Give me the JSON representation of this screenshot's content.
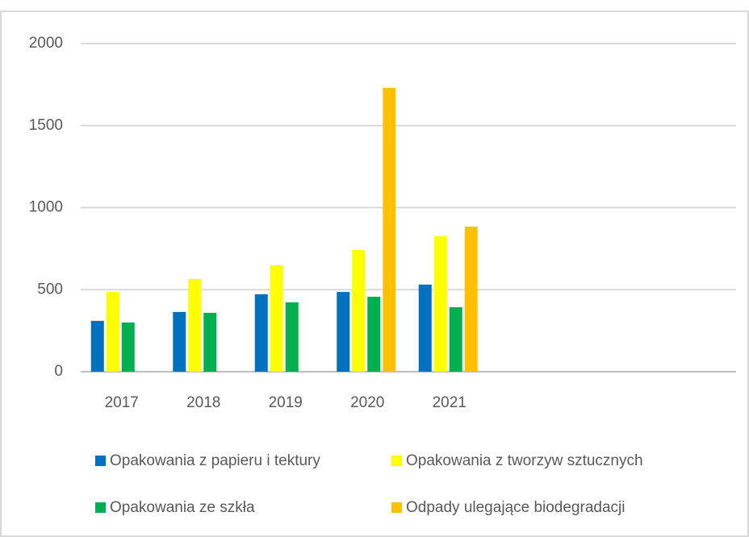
{
  "chart_data": {
    "type": "bar",
    "categories": [
      "2017",
      "2018",
      "2019",
      "2020",
      "2021",
      null,
      null,
      null
    ],
    "series": [
      {
        "name": "Opakowania z papieru i tektury",
        "color": "#0070c0",
        "values": [
          310,
          364,
          472,
          486,
          531,
          null,
          null,
          null
        ]
      },
      {
        "name": "Opakowania z tworzyw sztucznych",
        "color": "#ffff00",
        "values": [
          486,
          565,
          649,
          742,
          826,
          null,
          null,
          null
        ]
      },
      {
        "name": "Opakowania ze szkła",
        "color": "#00b050",
        "values": [
          300,
          359,
          423,
          457,
          393,
          null,
          null,
          null
        ]
      },
      {
        "name": "Odpady ulegające biodegradacji",
        "color": "#ffc000",
        "values": [
          null,
          null,
          null,
          1730,
          884,
          null,
          null,
          null
        ]
      }
    ],
    "ylim": [
      0,
      2000
    ],
    "yticks": [
      0,
      500,
      1000,
      1500,
      2000
    ],
    "grid": true,
    "legend": "bottom"
  }
}
